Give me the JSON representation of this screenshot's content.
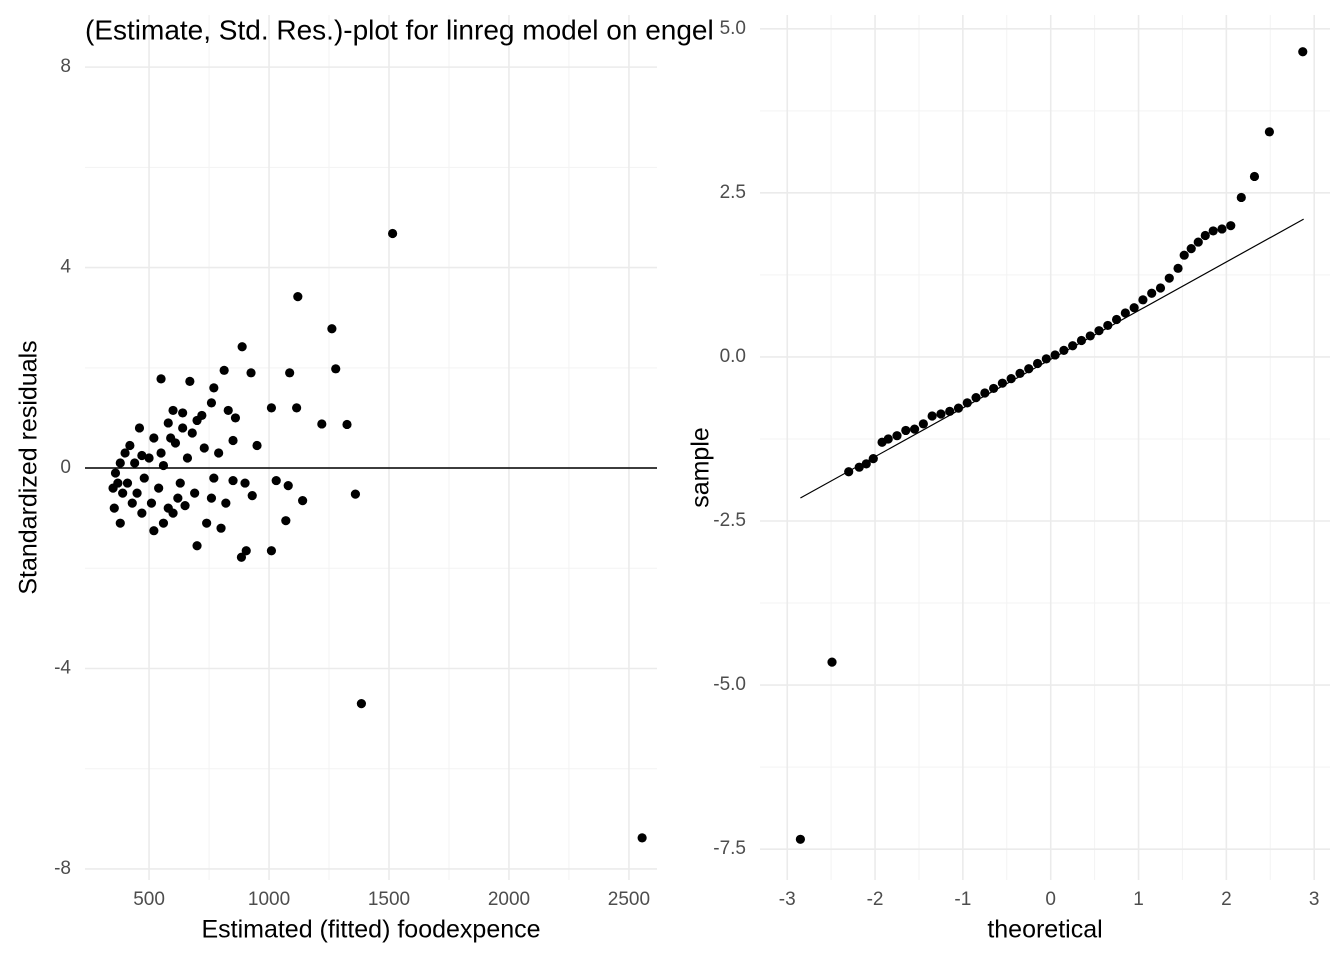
{
  "chart_data": [
    {
      "type": "scatter",
      "title": "(Estimate, Std. Res.)-plot for linreg model on engel",
      "x_label": "Estimated (fitted) foodexpence",
      "y_label": "Standardized residuals",
      "xlim": [
        233,
        2617
      ],
      "ylim": [
        -8.22,
        9.04
      ],
      "xticks": [
        500,
        1000,
        1500,
        2000,
        2500
      ],
      "yticks": [
        -8,
        -4,
        0,
        4,
        8
      ],
      "grid": true,
      "color": "#000000",
      "hline": 0,
      "x": [
        1515,
        1120,
        1262,
        888,
        1278,
        1086,
        813,
        925,
        550,
        670,
        770,
        1010,
        1115,
        1220,
        1325,
        830,
        760,
        860,
        720,
        640,
        600,
        580,
        520,
        460,
        420,
        400,
        380,
        360,
        350,
        355,
        380,
        430,
        470,
        520,
        560,
        600,
        650,
        700,
        740,
        800,
        885,
        905,
        1010,
        1070,
        930,
        1030,
        1080,
        1140,
        1360,
        1385,
        2555,
        500,
        550,
        610,
        680,
        730,
        790,
        850,
        900,
        950,
        480,
        540,
        630,
        690,
        760,
        820,
        440,
        410,
        390,
        370,
        450,
        560,
        620,
        660,
        700,
        770,
        850,
        470,
        510,
        590,
        640,
        580
      ],
      "values": [
        4.68,
        3.42,
        2.78,
        2.42,
        1.98,
        1.9,
        1.95,
        1.9,
        1.78,
        1.73,
        1.6,
        1.2,
        1.2,
        0.88,
        0.87,
        1.15,
        1.3,
        1.0,
        1.05,
        1.1,
        1.15,
        0.9,
        0.6,
        0.8,
        0.45,
        0.3,
        0.1,
        -0.1,
        -0.4,
        -0.8,
        -1.1,
        -0.7,
        -0.9,
        -1.25,
        -1.1,
        -0.9,
        -0.75,
        -1.55,
        -1.1,
        -1.2,
        -1.78,
        -1.65,
        -1.65,
        -1.05,
        -0.55,
        -0.25,
        -0.35,
        -0.65,
        -0.52,
        -4.7,
        -7.38,
        0.2,
        0.3,
        0.5,
        0.7,
        0.4,
        0.3,
        0.55,
        -0.3,
        0.45,
        -0.2,
        -0.4,
        -0.3,
        -0.5,
        -0.6,
        -0.7,
        0.1,
        -0.3,
        -0.5,
        -0.3,
        -0.5,
        0.05,
        -0.6,
        0.2,
        0.95,
        -0.2,
        -0.25,
        0.25,
        -0.7,
        0.6,
        0.8,
        -0.8
      ]
    },
    {
      "type": "scatter",
      "x_label": "theoretical",
      "y_label": "sample",
      "xlim": [
        -3.31,
        3.18
      ],
      "ylim": [
        -7.97,
        5.21
      ],
      "xticks": [
        -3,
        -2,
        -1,
        0,
        1,
        2,
        3
      ],
      "yticks": [
        -7.5,
        {
          "value": -5,
          "label": "-5.0"
        },
        -2.5,
        {
          "value": 0,
          "label": "0.0"
        },
        2.5,
        {
          "value": 5,
          "label": "5.0"
        }
      ],
      "grid": true,
      "color": "#000000",
      "ref_line": {
        "x": [
          -2.85,
          2.88
        ],
        "y": [
          -2.15,
          2.1
        ]
      },
      "x": [
        -2.85,
        -2.49,
        -2.3,
        -2.18,
        -2.1,
        -2.02,
        -1.92,
        -1.85,
        -1.75,
        -1.65,
        -1.55,
        -1.45,
        -1.35,
        -1.25,
        -1.15,
        -1.05,
        -0.95,
        -0.85,
        -0.75,
        -0.65,
        -0.55,
        -0.45,
        -0.35,
        -0.25,
        -0.15,
        -0.05,
        0.05,
        0.15,
        0.25,
        0.35,
        0.45,
        0.55,
        0.65,
        0.75,
        0.85,
        0.95,
        1.05,
        1.15,
        1.25,
        1.35,
        1.45,
        1.52,
        1.6,
        1.68,
        1.76,
        1.85,
        1.95,
        2.05,
        2.17,
        2.32,
        2.49,
        2.87
      ],
      "values": [
        -7.35,
        -4.65,
        -1.75,
        -1.68,
        -1.63,
        -1.55,
        -1.3,
        -1.25,
        -1.2,
        -1.12,
        -1.1,
        -1.02,
        -0.9,
        -0.87,
        -0.83,
        -0.78,
        -0.7,
        -0.62,
        -0.55,
        -0.48,
        -0.4,
        -0.33,
        -0.25,
        -0.18,
        -0.1,
        -0.03,
        0.03,
        0.1,
        0.17,
        0.25,
        0.32,
        0.4,
        0.48,
        0.57,
        0.67,
        0.75,
        0.87,
        0.97,
        1.05,
        1.2,
        1.35,
        1.55,
        1.65,
        1.75,
        1.85,
        1.92,
        1.95,
        2.0,
        2.43,
        2.75,
        3.43,
        4.65
      ]
    }
  ]
}
